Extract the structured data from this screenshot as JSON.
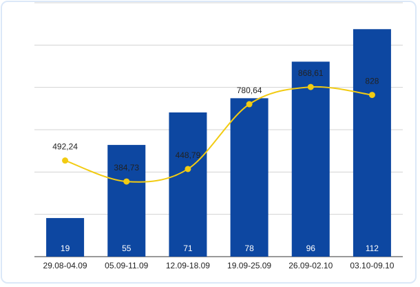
{
  "chart_data": {
    "type": "bar",
    "title": "",
    "xlabel": "",
    "ylabel": "",
    "grid": true,
    "categories": [
      "29.08-04.09",
      "05.09-11.09",
      "12.09-18.09",
      "19.09-25.09",
      "26.09-02.10",
      "03.10-09.10"
    ],
    "bar_series": {
      "values": [
        19,
        55,
        71,
        78,
        96,
        112
      ],
      "value_labels": [
        "19",
        "55",
        "71",
        "78",
        "96",
        "112"
      ],
      "color": "#0d47a1",
      "ylim": [
        0,
        125
      ]
    },
    "line_series": {
      "values": [
        492.24,
        384.73,
        448.79,
        780.64,
        868.61,
        828
      ],
      "value_labels": [
        "492,24",
        "384,73",
        "448,79",
        "780,64",
        "868,61",
        "828"
      ],
      "color": "#f2cb12",
      "ylim": [
        0,
        1300
      ]
    }
  }
}
